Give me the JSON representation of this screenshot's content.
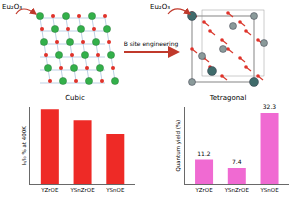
{
  "diagram": {
    "dopant_left": "Eu₂O₃",
    "dopant_right": "Eu₂O₃",
    "arrow_label": "B site engineering",
    "left_label": "Cubic",
    "right_label": "Tetragonal"
  },
  "chart_data": [
    {
      "type": "bar",
      "y_label": "Iₜ/I₀ % at 400K",
      "categories": [
        "YZrOE",
        "YSnZrOE",
        "YSnOE"
      ],
      "values": [
        97,
        83,
        65
      ],
      "color": "#ee2a26",
      "ylim": [
        0,
        100
      ],
      "tick_labels": "x",
      "grid": false,
      "data_labels": false
    },
    {
      "type": "bar",
      "y_label": "Quantum yield (%)",
      "categories": [
        "YZrOE",
        "YSnZrOE",
        "YSnOE"
      ],
      "values": [
        11.2,
        7.4,
        32.3
      ],
      "color": "#f06ad2",
      "ylim": [
        0,
        35
      ],
      "tick_labels": "x",
      "grid": false,
      "data_labels": true
    }
  ]
}
